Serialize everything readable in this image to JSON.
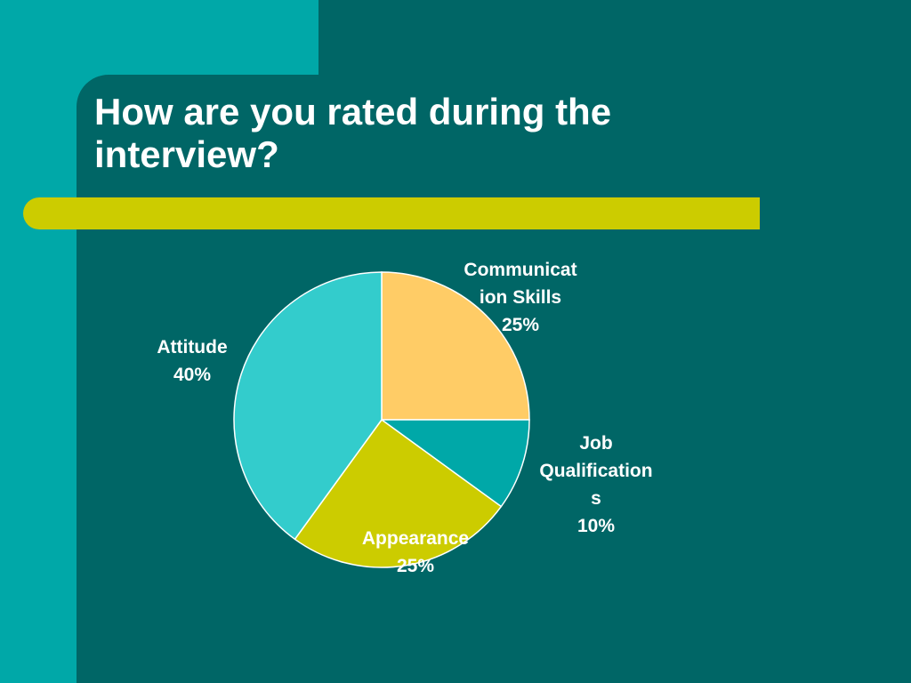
{
  "slide": {
    "title": "How are you rated during the\ninterview?",
    "colors": {
      "background": "#00A8A8",
      "panel": "#006666",
      "accent_bar": "#CCCC00",
      "text": "#FFFFFF"
    }
  },
  "chart_data": {
    "type": "pie",
    "title": "",
    "start_angle_deg": 0,
    "direction": "clockwise",
    "slices": [
      {
        "category": "Communication Skills",
        "label_lines": [
          "Communicat",
          "ion Skills"
        ],
        "value": 25,
        "value_label": "25%",
        "color": "#FFCC66"
      },
      {
        "category": "Job Qualifications",
        "label_lines": [
          "Job",
          "Qualification",
          "s"
        ],
        "value": 10,
        "value_label": "10%",
        "color": "#00A8A8"
      },
      {
        "category": "Appearance",
        "label_lines": [
          "Appearance"
        ],
        "value": 25,
        "value_label": "25%",
        "color": "#CCCC00"
      },
      {
        "category": "Attitude",
        "label_lines": [
          "Attitude"
        ],
        "value": 40,
        "value_label": "40%",
        "color": "#33CCCC"
      }
    ]
  }
}
